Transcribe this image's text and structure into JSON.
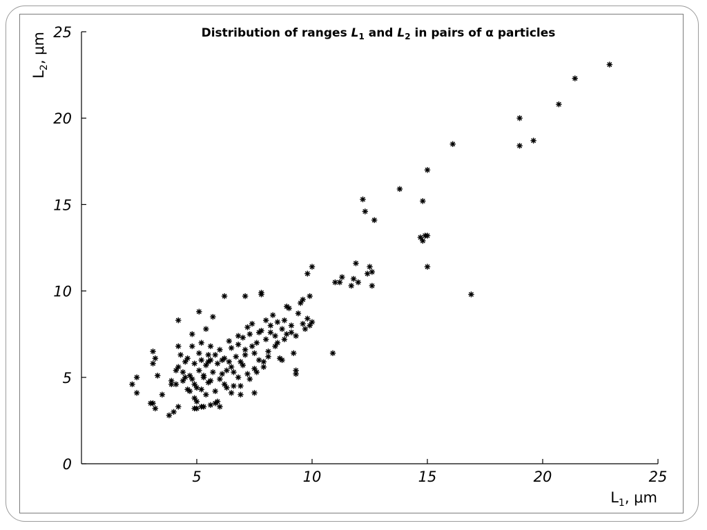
{
  "chart_data": {
    "type": "scatter",
    "title": {
      "prefix": "Distribution of ranges ",
      "var1": "L",
      "sub1": "1",
      "middle": " and ",
      "var2": "L",
      "sub2": "2",
      "suffix": " in pairs of α particles"
    },
    "xlabel": {
      "base": "L",
      "sub": "1",
      "unit": ", μm"
    },
    "ylabel": {
      "base": "L",
      "sub": "2",
      "unit": ", μm"
    },
    "xlim": [
      0,
      25
    ],
    "ylim": [
      0,
      25
    ],
    "x_ticks": [
      5,
      10,
      15,
      20,
      25
    ],
    "y_ticks": [
      0,
      5,
      10,
      15,
      20,
      25
    ],
    "grid": false,
    "marker": "asterisk",
    "points": [
      [
        2.2,
        4.6
      ],
      [
        2.4,
        5.0
      ],
      [
        2.4,
        4.1
      ],
      [
        3.0,
        3.5
      ],
      [
        3.1,
        3.5
      ],
      [
        3.2,
        3.2
      ],
      [
        3.1,
        5.8
      ],
      [
        3.1,
        6.5
      ],
      [
        3.2,
        6.1
      ],
      [
        3.3,
        5.1
      ],
      [
        3.5,
        4.0
      ],
      [
        3.9,
        4.6
      ],
      [
        3.8,
        2.8
      ],
      [
        4.0,
        3.0
      ],
      [
        4.2,
        3.3
      ],
      [
        4.1,
        4.6
      ],
      [
        4.2,
        5.6
      ],
      [
        4.2,
        6.8
      ],
      [
        4.2,
        8.3
      ],
      [
        4.4,
        5.3
      ],
      [
        4.5,
        5.9
      ],
      [
        4.6,
        4.3
      ],
      [
        4.7,
        5.1
      ],
      [
        4.8,
        4.9
      ],
      [
        4.8,
        6.8
      ],
      [
        4.9,
        3.2
      ],
      [
        4.9,
        5.8
      ],
      [
        5.0,
        3.6
      ],
      [
        5.0,
        4.4
      ],
      [
        5.1,
        6.4
      ],
      [
        5.1,
        5.4
      ],
      [
        5.2,
        6.0
      ],
      [
        5.2,
        3.3
      ],
      [
        5.3,
        5.0
      ],
      [
        5.4,
        4.0
      ],
      [
        5.4,
        5.7
      ],
      [
        5.5,
        6.3
      ],
      [
        5.5,
        4.7
      ],
      [
        5.6,
        3.4
      ],
      [
        5.6,
        6.0
      ],
      [
        5.7,
        5.3
      ],
      [
        5.8,
        3.5
      ],
      [
        5.8,
        4.2
      ],
      [
        5.9,
        5.8
      ],
      [
        6.0,
        3.3
      ],
      [
        6.0,
        4.9
      ],
      [
        6.1,
        5.2
      ],
      [
        6.2,
        6.1
      ],
      [
        6.2,
        4.6
      ],
      [
        6.3,
        5.4
      ],
      [
        6.4,
        5.9
      ],
      [
        6.5,
        6.7
      ],
      [
        6.5,
        4.1
      ],
      [
        6.6,
        5.3
      ],
      [
        6.7,
        6.2
      ],
      [
        6.8,
        5.0
      ],
      [
        6.8,
        6.9
      ],
      [
        6.9,
        4.5
      ],
      [
        7.0,
        5.7
      ],
      [
        7.0,
        7.3
      ],
      [
        7.1,
        6.3
      ],
      [
        7.2,
        5.2
      ],
      [
        7.3,
        7.5
      ],
      [
        7.4,
        6.8
      ],
      [
        7.5,
        5.5
      ],
      [
        7.5,
        4.1
      ],
      [
        7.6,
        7.0
      ],
      [
        7.7,
        6.0
      ],
      [
        7.8,
        7.7
      ],
      [
        7.9,
        5.6
      ],
      [
        8.0,
        7.2
      ],
      [
        8.1,
        6.5
      ],
      [
        8.2,
        8.0
      ],
      [
        8.3,
        8.6
      ],
      [
        8.4,
        7.4
      ],
      [
        8.5,
        7.0
      ],
      [
        8.6,
        6.1
      ],
      [
        8.7,
        7.8
      ],
      [
        8.8,
        8.3
      ],
      [
        8.9,
        7.5
      ],
      [
        9.0,
        9.0
      ],
      [
        9.1,
        8.0
      ],
      [
        9.2,
        6.4
      ],
      [
        9.3,
        7.4
      ],
      [
        9.4,
        8.7
      ],
      [
        9.5,
        9.3
      ],
      [
        9.6,
        8.1
      ],
      [
        9.7,
        7.8
      ],
      [
        9.8,
        8.4
      ],
      [
        9.9,
        8.0
      ],
      [
        10.0,
        8.2
      ],
      [
        10.0,
        11.4
      ],
      [
        9.9,
        9.7
      ],
      [
        9.8,
        11.0
      ],
      [
        9.6,
        9.5
      ],
      [
        9.3,
        5.4
      ],
      [
        9.3,
        5.2
      ],
      [
        8.7,
        6.0
      ],
      [
        8.9,
        9.1
      ],
      [
        7.8,
        9.8
      ],
      [
        7.8,
        9.9
      ],
      [
        7.1,
        9.7
      ],
      [
        6.2,
        9.7
      ],
      [
        5.1,
        8.8
      ],
      [
        5.7,
        8.5
      ],
      [
        5.4,
        7.8
      ],
      [
        5.6,
        6.8
      ],
      [
        5.2,
        7.0
      ],
      [
        4.8,
        7.5
      ],
      [
        4.6,
        6.1
      ],
      [
        4.3,
        6.3
      ],
      [
        4.5,
        5.0
      ],
      [
        4.7,
        4.2
      ],
      [
        4.9,
        3.8
      ],
      [
        5.0,
        3.2
      ],
      [
        5.3,
        3.3
      ],
      [
        5.9,
        3.6
      ],
      [
        6.3,
        4.4
      ],
      [
        6.6,
        4.5
      ],
      [
        6.9,
        4.0
      ],
      [
        7.3,
        4.9
      ],
      [
        7.6,
        5.3
      ],
      [
        7.9,
        5.9
      ],
      [
        8.1,
        6.2
      ],
      [
        8.4,
        6.8
      ],
      [
        8.8,
        7.2
      ],
      [
        9.1,
        7.6
      ],
      [
        6.0,
        6.6
      ],
      [
        6.4,
        7.1
      ],
      [
        6.8,
        7.4
      ],
      [
        7.2,
        7.9
      ],
      [
        7.4,
        8.1
      ],
      [
        7.7,
        7.6
      ],
      [
        8.0,
        8.3
      ],
      [
        5.5,
        5.9
      ],
      [
        5.8,
        6.3
      ],
      [
        6.1,
        6.0
      ],
      [
        5.3,
        5.1
      ],
      [
        4.9,
        4.6
      ],
      [
        4.4,
        4.8
      ],
      [
        4.1,
        5.4
      ],
      [
        3.9,
        4.8
      ],
      [
        5.2,
        4.3
      ],
      [
        5.6,
        4.8
      ],
      [
        6.5,
        5.6
      ],
      [
        6.9,
        5.9
      ],
      [
        7.1,
        6.6
      ],
      [
        7.5,
        6.4
      ],
      [
        8.2,
        7.6
      ],
      [
        8.5,
        8.2
      ],
      [
        10.9,
        6.4
      ],
      [
        11.0,
        10.5
      ],
      [
        11.2,
        10.5
      ],
      [
        11.3,
        10.8
      ],
      [
        11.7,
        10.3
      ],
      [
        11.8,
        10.7
      ],
      [
        11.9,
        11.6
      ],
      [
        12.0,
        10.5
      ],
      [
        12.2,
        15.3
      ],
      [
        12.3,
        14.6
      ],
      [
        12.4,
        11.0
      ],
      [
        12.5,
        11.4
      ],
      [
        12.6,
        11.1
      ],
      [
        12.6,
        10.3
      ],
      [
        12.7,
        14.1
      ],
      [
        13.8,
        15.9
      ],
      [
        14.8,
        15.2
      ],
      [
        14.7,
        13.1
      ],
      [
        14.8,
        12.9
      ],
      [
        14.9,
        13.2
      ],
      [
        15.0,
        13.2
      ],
      [
        15.0,
        11.4
      ],
      [
        15.0,
        17.0
      ],
      [
        16.1,
        18.5
      ],
      [
        16.9,
        9.8
      ],
      [
        19.0,
        20.0
      ],
      [
        19.0,
        18.4
      ],
      [
        19.6,
        18.7
      ],
      [
        20.7,
        20.8
      ],
      [
        21.4,
        22.3
      ],
      [
        22.9,
        23.1
      ]
    ]
  }
}
